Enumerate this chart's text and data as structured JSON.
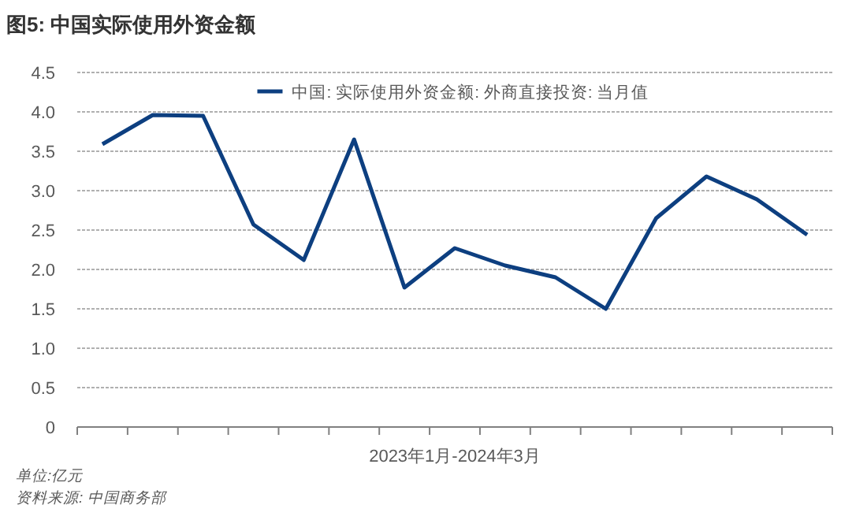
{
  "chart_data": {
    "type": "line",
    "title": "图5: 中国实际使用外资金额",
    "xlabel": "2023年1月-2024年3月",
    "categories": [
      null,
      null,
      null,
      null,
      null,
      null,
      null,
      null,
      null,
      null,
      null,
      null,
      null,
      null,
      null
    ],
    "series": [
      {
        "name": "中国: 实际使用外资金额: 外商直接投资: 当月值",
        "color": "#0d3f80",
        "values": [
          3.59,
          3.96,
          3.95,
          2.57,
          2.12,
          3.65,
          1.77,
          2.27,
          2.05,
          1.9,
          1.5,
          2.65,
          3.18,
          2.89,
          2.44
        ]
      }
    ],
    "ylim": [
      0,
      4.5
    ],
    "yticks": [
      0,
      0.5,
      {
        "value": 1,
        "label": "1.0"
      },
      1.5,
      {
        "value": 2,
        "label": "2.0"
      },
      2.5,
      {
        "value": 3,
        "label": "3.0"
      },
      3.5,
      {
        "value": 4,
        "label": "4.0"
      },
      4.5
    ],
    "grid": "y",
    "legend": "top",
    "marker": "none",
    "line_style": "solid",
    "annotations": [
      "单位:亿元",
      "资料来源: 中国商务部"
    ]
  }
}
